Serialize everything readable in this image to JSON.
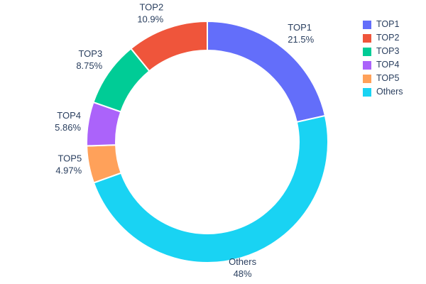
{
  "figure": {
    "background_color": "#ffffff",
    "text_color": "#2a3f5f"
  },
  "chart_data": {
    "type": "pie",
    "subtype": "donut",
    "hole_ratio": 0.76,
    "labels": [
      "TOP1",
      "TOP2",
      "TOP3",
      "TOP4",
      "TOP5",
      "Others"
    ],
    "values": [
      21.5,
      10.9,
      8.75,
      5.86,
      4.97,
      48
    ],
    "value_labels": [
      "21.5%",
      "10.9%",
      "8.75%",
      "5.86%",
      "4.97%",
      "48%"
    ],
    "colors": [
      "#636EFA",
      "#EF553B",
      "#00CC96",
      "#AB63FA",
      "#FFA15A",
      "#19D3F3"
    ],
    "draw_order_clockwise_from_top": [
      "TOP1",
      "Others",
      "TOP5",
      "TOP4",
      "TOP3",
      "TOP2"
    ],
    "slice_border_color": "#ffffff",
    "legend": {
      "position": "top-right",
      "entries": [
        "TOP1",
        "TOP2",
        "TOP3",
        "TOP4",
        "TOP5",
        "Others"
      ]
    }
  }
}
